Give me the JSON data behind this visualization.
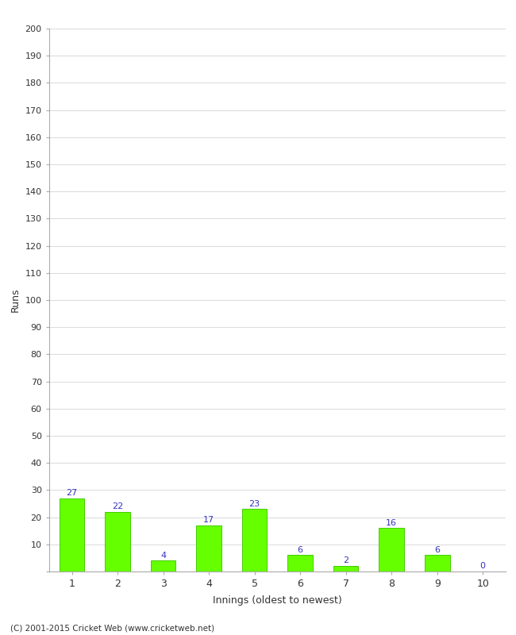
{
  "categories": [
    1,
    2,
    3,
    4,
    5,
    6,
    7,
    8,
    9,
    10
  ],
  "values": [
    27,
    22,
    4,
    17,
    23,
    6,
    2,
    16,
    6,
    0
  ],
  "bar_color": "#66ff00",
  "bar_edge_color": "#44cc00",
  "label_color": "#3333bb",
  "ylabel": "Runs",
  "xlabel": "Innings (oldest to newest)",
  "ylim": [
    0,
    200
  ],
  "yticks": [
    0,
    10,
    20,
    30,
    40,
    50,
    60,
    70,
    80,
    90,
    100,
    110,
    120,
    130,
    140,
    150,
    160,
    170,
    180,
    190,
    200
  ],
  "background_color": "#ffffff",
  "plot_bg_color": "#ffffff",
  "grid_color": "#dddddd",
  "footer": "(C) 2001-2015 Cricket Web (www.cricketweb.net)"
}
